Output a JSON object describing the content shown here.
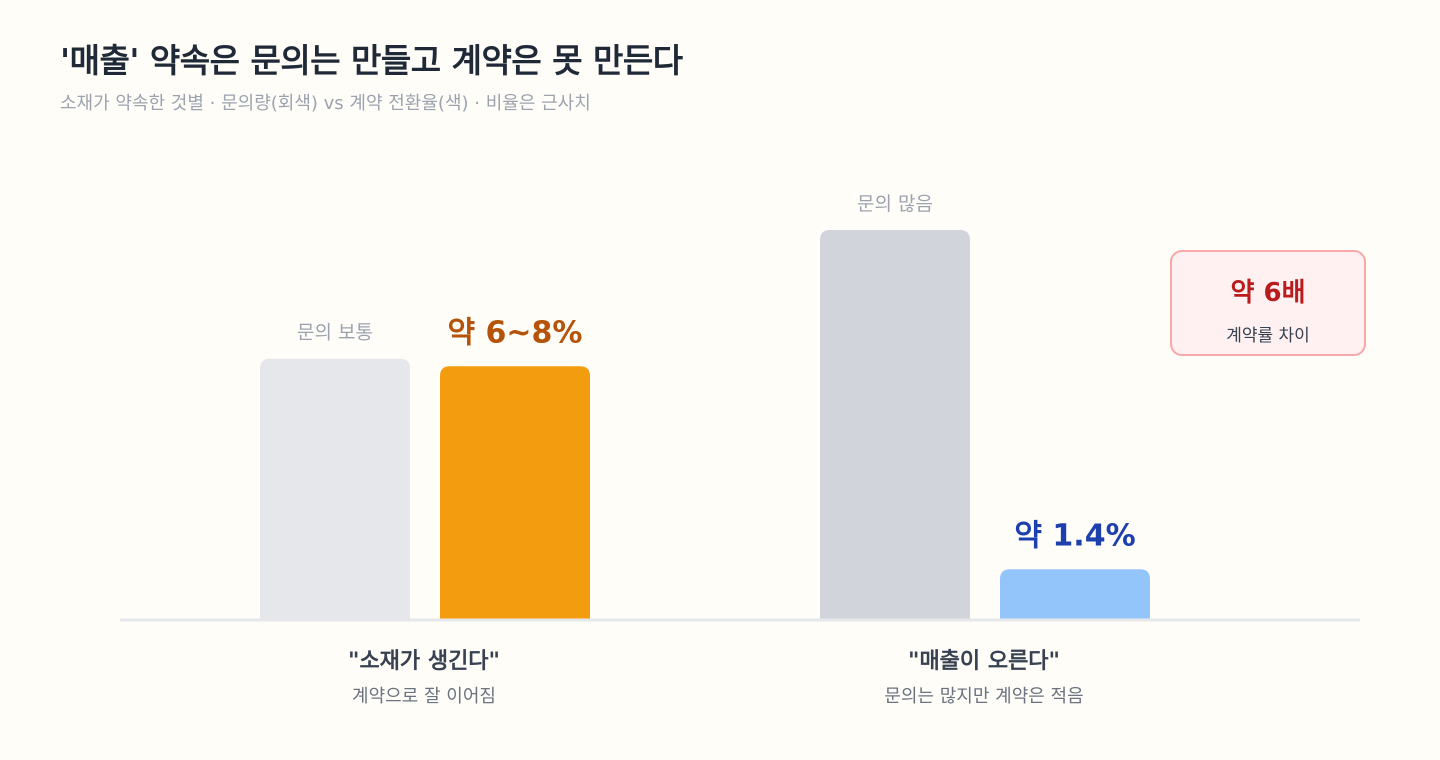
{
  "title": "'매출' 약속은 문의는 만들고 계약은 못 만든다",
  "subtitle": "소재가 약속한 것별 · 문의량(회색) vs 계약 전환율(색) · 비율은 근사치",
  "colors": {
    "inquiry_normal": "#e5e7eb",
    "inquiry_high": "#d1d5db",
    "conversion_good": "#f39c0f",
    "conversion_bad": "#93c5fb",
    "label_good": "#b45309",
    "label_bad": "#1e40af",
    "group_title": "#374151",
    "group_sub": "#6b7280",
    "bar_caption": "#9ca3af",
    "baseline": "#e5e7eb"
  },
  "chart_data": {
    "type": "bar",
    "title": "'매출' 약속은 문의는 만들고 계약은 못 만든다",
    "subtitle": "소재가 약속한 것별 · 문의량(회색) vs 계약 전환율(색) · 비율은 근사치",
    "categories": [
      "\"소재가 생긴다\"",
      "\"매출이 오른다\""
    ],
    "category_subtitles": [
      "계약으로 잘 이어짐",
      "문의는 많지만 계약은 적음"
    ],
    "series": [
      {
        "key": "inquiry",
        "relative_values": [
          0.67,
          1.0
        ],
        "bar_labels": [
          "문의 보통",
          "문의 많음"
        ]
      },
      {
        "key": "conversion",
        "values": [
          7,
          1.4
        ],
        "unit": "%",
        "bar_labels": [
          "약 6~8%",
          "약 1.4%"
        ]
      }
    ],
    "annotation": {
      "value": "약 6배",
      "label": "계약률 차이"
    },
    "grid": false,
    "legend": "none"
  }
}
